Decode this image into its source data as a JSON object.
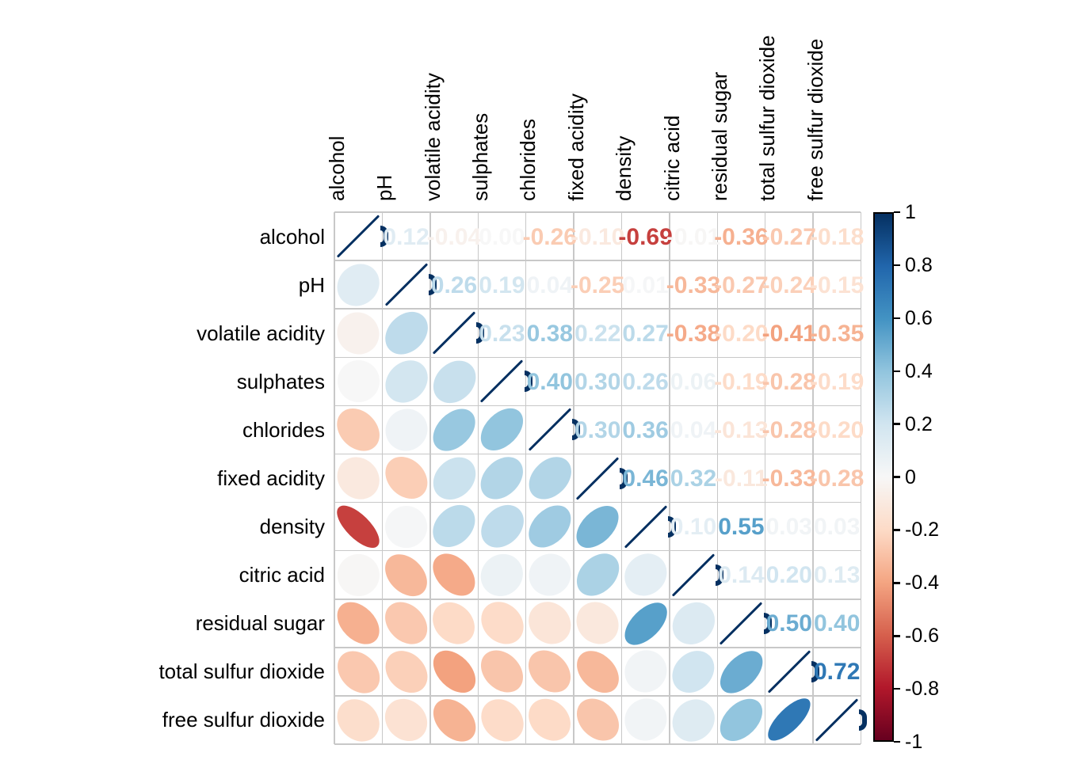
{
  "chart_data": {
    "type": "heatmap",
    "subtype": "correlation-matrix",
    "title": "",
    "description": "Correlation plot: lower triangle = ellipses, diagonal = unit line, upper triangle = coefficients, colored by RdBu scale",
    "variables": [
      "alcohol",
      "pH",
      "volatile acidity",
      "sulphates",
      "chlorides",
      "fixed acidity",
      "density",
      "citric acid",
      "residual sugar",
      "total sulfur dioxide",
      "free sulfur dioxide"
    ],
    "matrix": [
      [
        1,
        0.12,
        -0.04,
        0.0,
        -0.26,
        -0.1,
        -0.69,
        -0.01,
        -0.36,
        -0.27,
        -0.18
      ],
      [
        0.12,
        1,
        0.26,
        0.19,
        0.04,
        -0.25,
        0.01,
        -0.33,
        -0.27,
        -0.24,
        -0.15
      ],
      [
        -0.04,
        0.26,
        1,
        0.23,
        0.38,
        0.22,
        0.27,
        -0.38,
        -0.2,
        -0.41,
        -0.35
      ],
      [
        0.0,
        0.19,
        0.23,
        1,
        0.4,
        0.3,
        0.26,
        0.06,
        -0.19,
        -0.28,
        -0.19
      ],
      [
        -0.26,
        0.04,
        0.38,
        0.4,
        1,
        0.3,
        0.36,
        0.04,
        -0.13,
        -0.28,
        -0.2
      ],
      [
        -0.1,
        -0.25,
        0.22,
        0.3,
        0.3,
        1,
        0.46,
        0.32,
        -0.11,
        -0.33,
        -0.28
      ],
      [
        -0.69,
        0.01,
        0.27,
        0.26,
        0.36,
        0.46,
        1,
        0.1,
        0.55,
        0.03,
        0.03
      ],
      [
        -0.01,
        -0.33,
        -0.38,
        0.06,
        0.04,
        0.32,
        0.1,
        1,
        0.14,
        0.2,
        0.13
      ],
      [
        -0.36,
        -0.27,
        -0.2,
        -0.19,
        -0.13,
        -0.11,
        0.55,
        0.14,
        1,
        0.5,
        0.4
      ],
      [
        -0.27,
        -0.24,
        -0.41,
        -0.28,
        -0.28,
        -0.33,
        0.03,
        0.2,
        0.5,
        1,
        0.72
      ],
      [
        -0.18,
        -0.15,
        -0.35,
        -0.19,
        -0.2,
        -0.28,
        0.03,
        0.13,
        0.4,
        0.72,
        1
      ]
    ],
    "value_range": [
      -1,
      1
    ],
    "colorbar": {
      "position": "right",
      "tick_labels": [
        "1",
        "0.8",
        "0.6",
        "0.4",
        "0.2",
        "0",
        "-0.2",
        "-0.4",
        "-0.6",
        "-0.8",
        "-1"
      ]
    },
    "palette": [
      "#67001F",
      "#B2182B",
      "#D6604D",
      "#F4A582",
      "#FDDBC7",
      "#F7F7F7",
      "#D1E5F0",
      "#92C5DE",
      "#4393C3",
      "#2166AC",
      "#053061"
    ],
    "grid_color": "#c8c8c8",
    "diag_color": "#053061",
    "layout_hints": {
      "lower_triangle": "ellipse",
      "upper_triangle": "number",
      "diagonal": "line",
      "labels": "black"
    }
  }
}
